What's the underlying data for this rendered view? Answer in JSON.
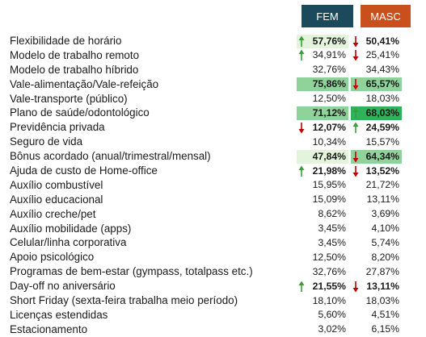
{
  "headers": {
    "fem": "FEM",
    "masc": "MASC"
  },
  "rows": [
    {
      "label": "Flexibilidade de horário",
      "fem": "57,76%",
      "masc": "50,41%"
    },
    {
      "label": "Modelo de trabalho remoto",
      "fem": "34,91%",
      "masc": "25,41%"
    },
    {
      "label": "Modelo de trabalho híbrido",
      "fem": "32,76%",
      "masc": "34,43%"
    },
    {
      "label": "Vale-alimentação/Vale-refeição",
      "fem": "75,86%",
      "masc": "65,57%"
    },
    {
      "label": "Vale-transporte (público)",
      "fem": "12,50%",
      "masc": "18,03%"
    },
    {
      "label": "Plano de saúde/odontológico",
      "fem": "71,12%",
      "masc": "68,03%"
    },
    {
      "label": "Previdência privada",
      "fem": "12,07%",
      "masc": "24,59%"
    },
    {
      "label": "Seguro de vida",
      "fem": "10,34%",
      "masc": "15,57%"
    },
    {
      "label": "Bônus acordado (anual/trimestral/mensal)",
      "fem": "47,84%",
      "masc": "64,34%"
    },
    {
      "label": "Ajuda de custo de Home-office",
      "fem": "21,98%",
      "masc": "13,52%"
    },
    {
      "label": "Auxílio combustível",
      "fem": "15,95%",
      "masc": "21,72%"
    },
    {
      "label": "Auxílio educacional",
      "fem": "15,09%",
      "masc": "13,11%"
    },
    {
      "label": "Auxílio creche/pet",
      "fem": "8,62%",
      "masc": "3,69%"
    },
    {
      "label": "Auxílio mobilidade (apps)",
      "fem": "3,45%",
      "masc": "4,10%"
    },
    {
      "label": "Celular/linha corporativa",
      "fem": "3,45%",
      "masc": "5,74%"
    },
    {
      "label": "Apoio psicológico",
      "fem": "12,50%",
      "masc": "8,20%"
    },
    {
      "label": "Programas de bem-estar (gympass, totalpass etc.)",
      "fem": "32,76%",
      "masc": "27,87%"
    },
    {
      "label": "Day-off no aniversário",
      "fem": "21,55%",
      "masc": "13,11%"
    },
    {
      "label": "Short Friday (sexta-feira trabalha meio período)",
      "fem": "18,10%",
      "masc": "18,03%"
    },
    {
      "label": "Licenças estendidas",
      "fem": "5,60%",
      "masc": "4,51%"
    },
    {
      "label": "Estacionamento",
      "fem": "3,02%",
      "masc": "6,15%"
    }
  ],
  "colors": {
    "fem_header": "#1b4a5c",
    "masc_header": "#c9501c",
    "arrow_up": "#3a9e3a",
    "arrow_down": "#c00000",
    "highlight_light": "#e3f3dc",
    "highlight_mid": "#8fd29a",
    "highlight_strong": "#2fb35a"
  }
}
